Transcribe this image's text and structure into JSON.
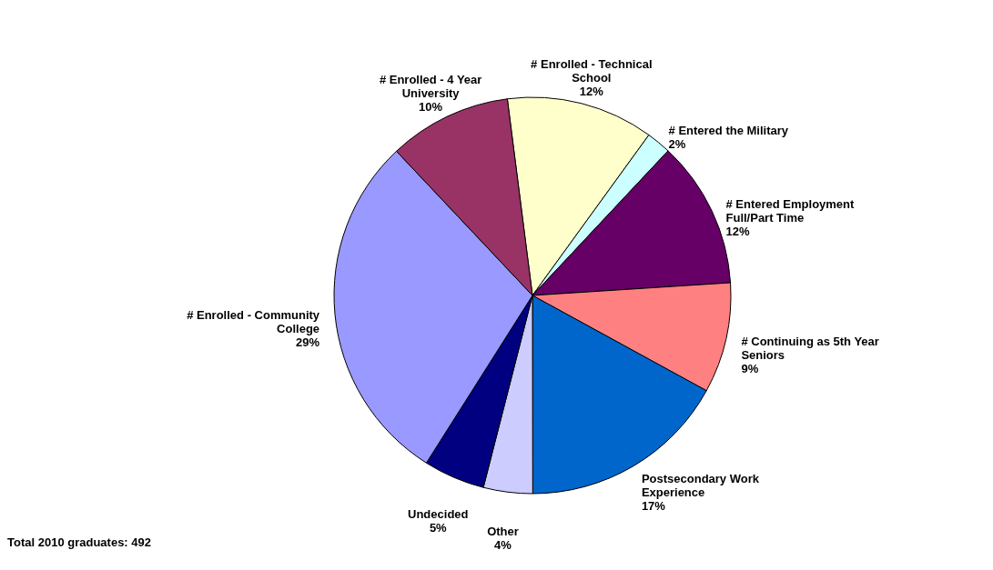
{
  "chart_data": {
    "type": "pie",
    "categories": [
      "# Enrolled - Technical School",
      "# Entered the Military",
      "# Entered Employment Full/Part Time",
      "# Continuing as 5th Year Seniors",
      "Postsecondary Work Experience",
      "Other",
      "Undecided",
      "# Enrolled - Community College",
      "# Enrolled - 4 Year University"
    ],
    "values": [
      12,
      2,
      12,
      9,
      17,
      4,
      5,
      29,
      10
    ],
    "colors": [
      "#ffffcc",
      "#ccffff",
      "#660066",
      "#ff8080",
      "#0066cc",
      "#ccccff",
      "#000080",
      "#9999ff",
      "#993366"
    ],
    "value_labels": [
      "12%",
      "2%",
      "12%",
      "9%",
      "17%",
      "4%",
      "5%",
      "29%",
      "10%"
    ],
    "annotations": [
      "Total 2010 graduates: 492"
    ]
  }
}
